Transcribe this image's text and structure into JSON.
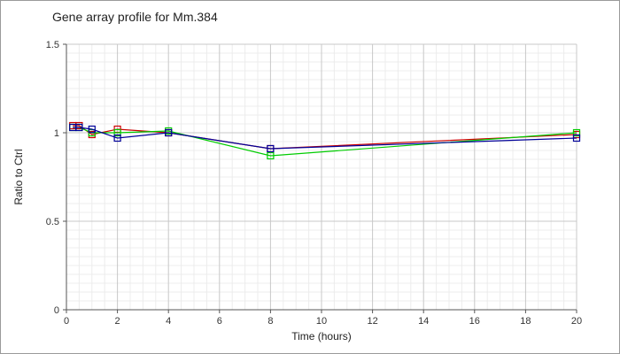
{
  "chart_data": {
    "type": "line",
    "title": "Gene array profile for Mm.384",
    "xlabel": "Time (hours)",
    "ylabel": "Ratio to Ctrl",
    "xlim": [
      0,
      20
    ],
    "ylim": [
      0,
      1.5
    ],
    "x_ticks": [
      "0",
      "2",
      "4",
      "6",
      "8",
      "10",
      "12",
      "14",
      "16",
      "18",
      "20"
    ],
    "y_ticks": [
      "0",
      "0.5",
      "1",
      "1.5"
    ],
    "grid": true,
    "legend": "none",
    "series": [
      {
        "color": "#cc0000",
        "marker": "square",
        "x": [
          0.25,
          0.5,
          1,
          2,
          4,
          8,
          20
        ],
        "y": [
          1.04,
          1.04,
          0.99,
          1.02,
          1.0,
          0.91,
          0.99
        ]
      },
      {
        "color": "#00cc00",
        "marker": "square",
        "x": [
          0.25,
          0.5,
          1,
          2,
          4,
          8,
          20
        ],
        "y": [
          1.03,
          1.03,
          1.0,
          1.0,
          1.01,
          0.87,
          1.0
        ]
      },
      {
        "color": "#000099",
        "marker": "square",
        "x": [
          0.25,
          0.5,
          1,
          2,
          4,
          8,
          20
        ],
        "y": [
          1.03,
          1.03,
          1.02,
          0.97,
          1.0,
          0.91,
          0.97
        ]
      }
    ]
  }
}
